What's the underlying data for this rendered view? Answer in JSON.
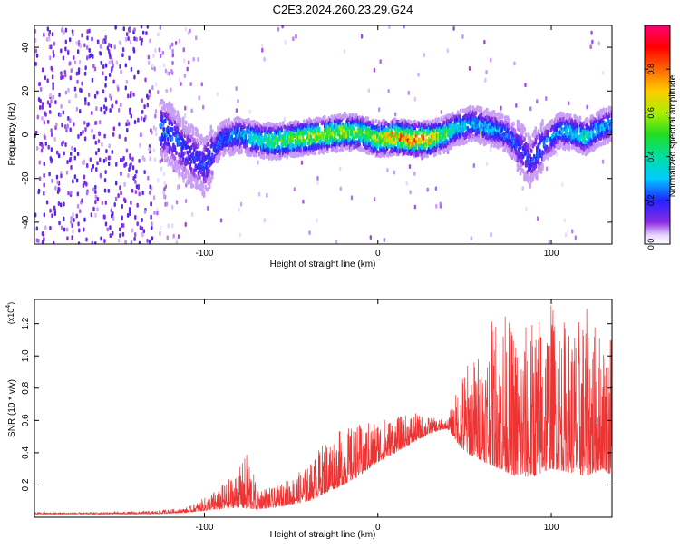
{
  "title": "C2E3.2024.260.23.29.G24",
  "chart_data": [
    {
      "type": "heatmap",
      "xlabel": "Height of straight line (km)",
      "ylabel": "Frequency (Hz)",
      "xlim": [
        -198,
        135
      ],
      "ylim": [
        -50,
        50
      ],
      "x_ticks": [
        -100,
        0,
        100
      ],
      "y_ticks": [
        -40,
        -20,
        0,
        20,
        40
      ],
      "colorbar": {
        "label": "Normalized spectral amplitude",
        "range": [
          0,
          1
        ],
        "ticks": [
          "0.0",
          "0.2",
          "0.4",
          "0.6",
          "0.8"
        ],
        "tick_values": [
          0,
          0.2,
          0.4,
          0.6,
          0.8
        ]
      },
      "ridge": {
        "x": [
          -122,
          -110,
          -100,
          -90,
          -80,
          -70,
          -60,
          -50,
          -40,
          -30,
          -20,
          -10,
          0,
          10,
          20,
          30,
          38,
          45,
          55,
          65,
          75,
          82,
          88,
          95,
          105,
          112,
          120,
          128,
          135
        ],
        "y": [
          2,
          -8,
          -14,
          -2,
          0,
          -2,
          -3,
          -2,
          -1,
          0,
          1,
          1,
          -2,
          -1,
          -2,
          -2,
          0,
          3,
          5,
          3,
          0,
          -6,
          -12,
          -5,
          2,
          1,
          -1,
          3,
          5
        ],
        "amplitude": [
          0.25,
          0.2,
          0.2,
          0.25,
          0.3,
          0.4,
          0.5,
          0.55,
          0.6,
          0.55,
          0.6,
          0.5,
          0.6,
          0.75,
          0.85,
          0.7,
          0.5,
          0.35,
          0.3,
          0.3,
          0.25,
          0.2,
          0.2,
          0.25,
          0.3,
          0.35,
          0.4,
          0.3,
          0.3
        ]
      }
    },
    {
      "type": "line",
      "xlabel": "Height of straight line (km)",
      "ylabel": "SNR (10 * v/v)",
      "y_multiplier": "(x10",
      "y_multiplier_exp": "4",
      "y_multiplier_close": ")",
      "xlim": [
        -198,
        135
      ],
      "ylim": [
        0,
        1.35
      ],
      "x_ticks": [
        -100,
        0,
        100
      ],
      "y_ticks": [
        0.2,
        0.4,
        0.6,
        0.8,
        1.0,
        1.2
      ],
      "y_tick_labels": [
        "0.2",
        "0.4",
        "0.6",
        "0.8",
        "1.0",
        "1.2"
      ],
      "color": "#ee3333",
      "envelope_x": [
        -198,
        -160,
        -130,
        -110,
        -100,
        -90,
        -80,
        -75,
        -70,
        -60,
        -50,
        -40,
        -30,
        -20,
        -10,
        0,
        10,
        20,
        30,
        40,
        50,
        60,
        70,
        80,
        90,
        100,
        110,
        120,
        130,
        135
      ],
      "envelope_low": [
        0.02,
        0.02,
        0.02,
        0.03,
        0.04,
        0.05,
        0.06,
        0.05,
        0.05,
        0.06,
        0.08,
        0.1,
        0.15,
        0.2,
        0.26,
        0.34,
        0.4,
        0.46,
        0.52,
        0.55,
        0.4,
        0.35,
        0.3,
        0.25,
        0.25,
        0.3,
        0.28,
        0.25,
        0.3,
        0.25
      ],
      "envelope_high": [
        0.03,
        0.03,
        0.04,
        0.06,
        0.12,
        0.2,
        0.3,
        0.42,
        0.2,
        0.18,
        0.25,
        0.32,
        0.5,
        0.55,
        0.58,
        0.62,
        0.62,
        0.65,
        0.62,
        0.6,
        0.95,
        1.05,
        1.35,
        1.15,
        1.25,
        1.35,
        1.2,
        1.3,
        1.15,
        1.25
      ]
    }
  ]
}
